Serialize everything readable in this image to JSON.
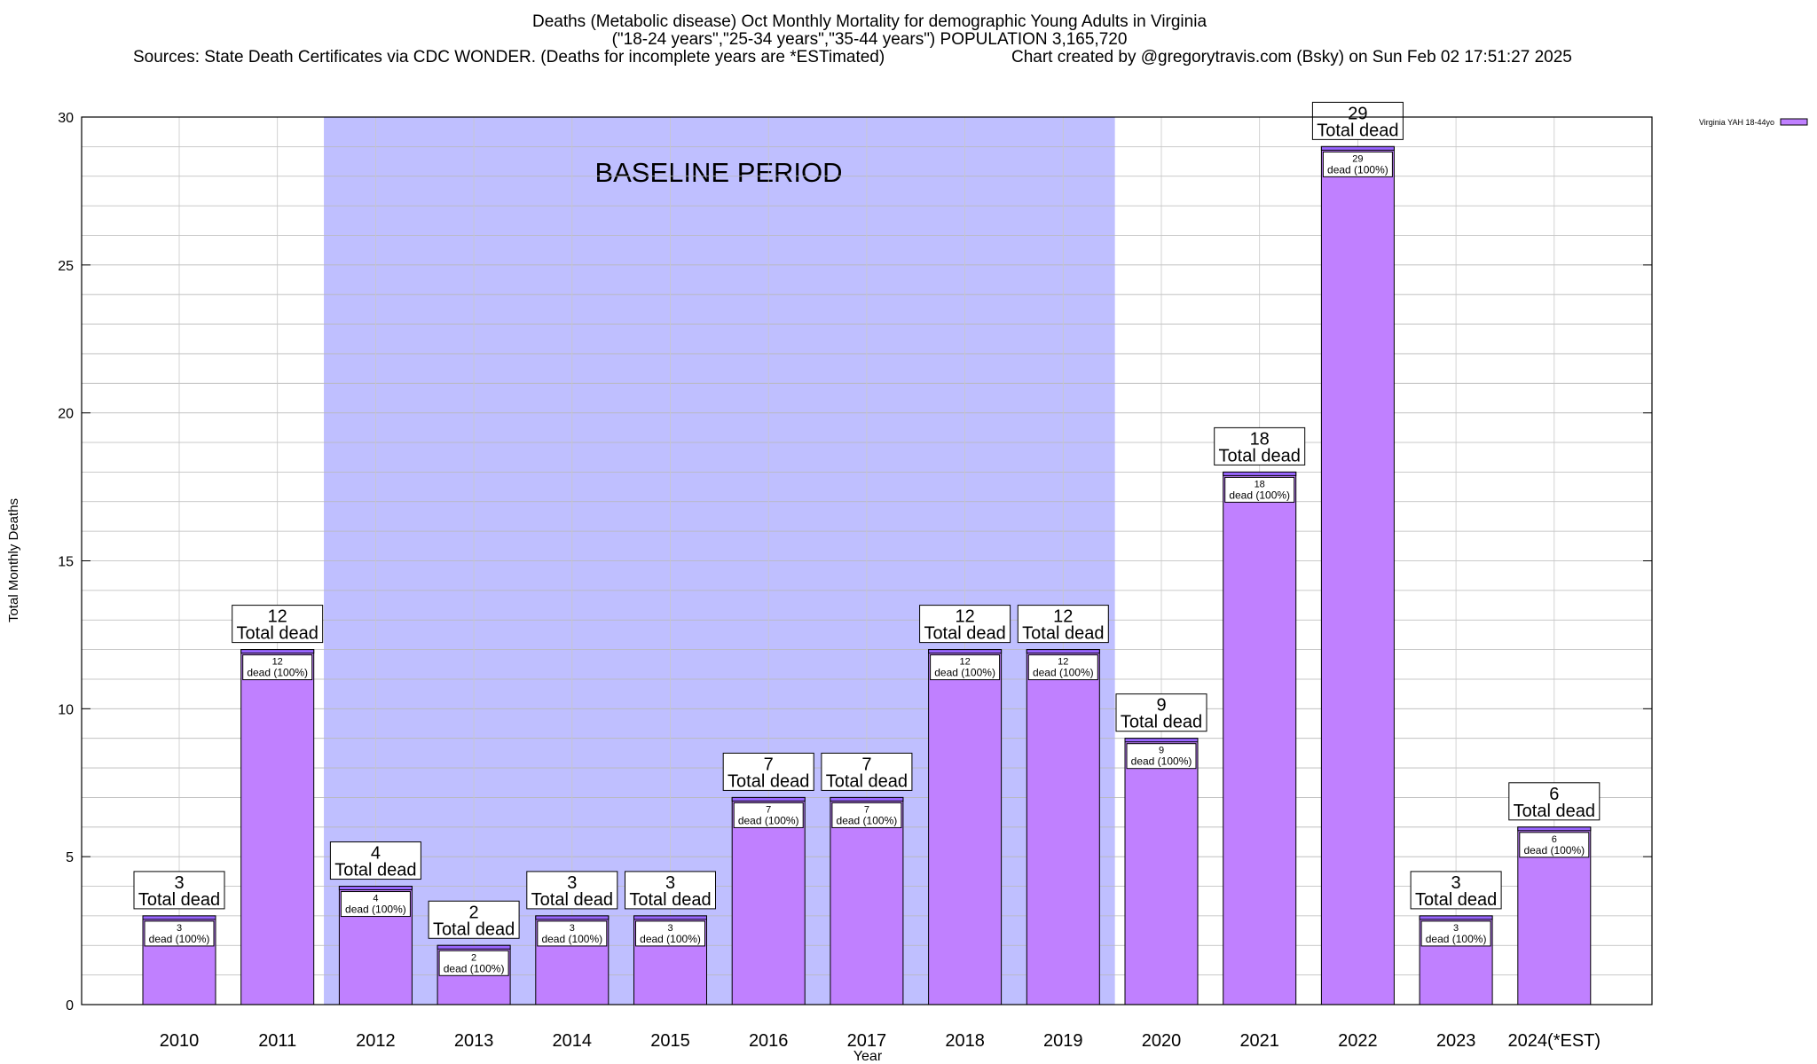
{
  "header": {
    "title_line1": "Deaths (Metabolic disease) Oct Monthly Mortality for demographic Young Adults in Virginia",
    "title_line2": "(\"18-24 years\",\"25-34 years\",\"35-44 years\") POPULATION 3,165,720",
    "sources": "Sources: State Death Certificates via CDC WONDER. (Deaths for incomplete years are *ESTimated)",
    "credit": "Chart created by @gregorytravis.com (Bsky) on Sun Feb 02 17:51:27 2025"
  },
  "chart_data": {
    "type": "bar",
    "xlabel": "Year",
    "ylabel": "Total Monthly Deaths",
    "ylim": [
      0,
      30
    ],
    "yticks": [
      0,
      5,
      10,
      15,
      20,
      25,
      30
    ],
    "minor_grid_step": 1,
    "grid": true,
    "legend_position": "top-right",
    "categories": [
      "2010",
      "2011",
      "2012",
      "2013",
      "2014",
      "2015",
      "2016",
      "2017",
      "2018",
      "2019",
      "2020",
      "2021",
      "2022",
      "2023",
      "2024(*EST)"
    ],
    "series": [
      {
        "name": "Virginia YAH 18-44yo",
        "values": [
          3,
          12,
          4,
          2,
          3,
          3,
          7,
          7,
          12,
          12,
          9,
          18,
          29,
          3,
          6
        ]
      }
    ],
    "total_label": "Total dead",
    "inner_label_suffix": "dead (100%)",
    "baseline": {
      "label": "BASELINE PERIOD",
      "from": "2012",
      "to": "2019"
    },
    "colors": {
      "bar_fill": "#c080ff",
      "bar_cap": "#9966ff",
      "baseline_fill": "#bfbfff"
    }
  }
}
